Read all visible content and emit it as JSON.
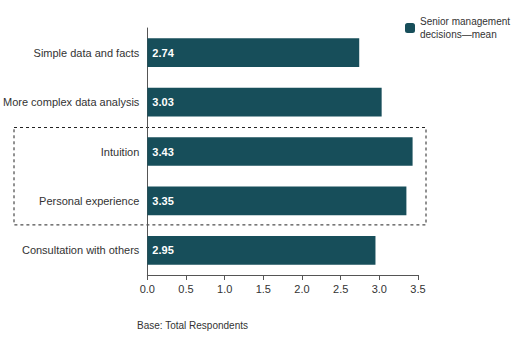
{
  "chart_data": {
    "type": "bar",
    "orientation": "horizontal",
    "categories": [
      "Simple data and facts",
      "More complex data analysis",
      "Intuition",
      "Personal experience",
      "Consultation with others"
    ],
    "series": [
      {
        "name": "Senior management decisions—mean",
        "color": "#174e5a",
        "values": [
          2.74,
          3.03,
          3.43,
          3.35,
          2.95
        ]
      }
    ],
    "xlim": [
      0,
      3.5
    ],
    "xticks": [
      {
        "value": 0,
        "label": "0.0"
      },
      0.5,
      {
        "value": 1,
        "label": "1.0"
      },
      1.5,
      {
        "value": 2,
        "label": "2.0"
      },
      2.5,
      {
        "value": 3,
        "label": "3.0"
      },
      3.5
    ],
    "data_labels": true,
    "grid": false,
    "legend": "top right",
    "footnote": "Base: Total Respondents"
  }
}
